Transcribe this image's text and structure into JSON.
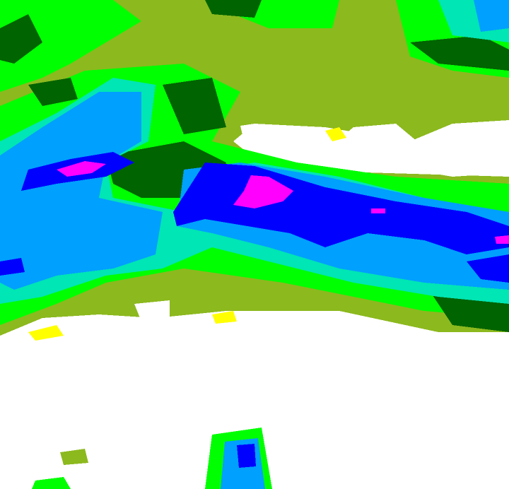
{
  "map": {
    "type": "precipitation-radar-raster",
    "legend_colors": {
      "none": "#ffffff",
      "trace": "#ffff00",
      "very_light": "#8cb91e",
      "light": "#00ff00",
      "light_moderate": "#006400",
      "moderate": "#00e6b4",
      "moderate_heavy": "#00a0ff",
      "heavy": "#0000ff",
      "very_heavy": "#ff00ff"
    }
  }
}
